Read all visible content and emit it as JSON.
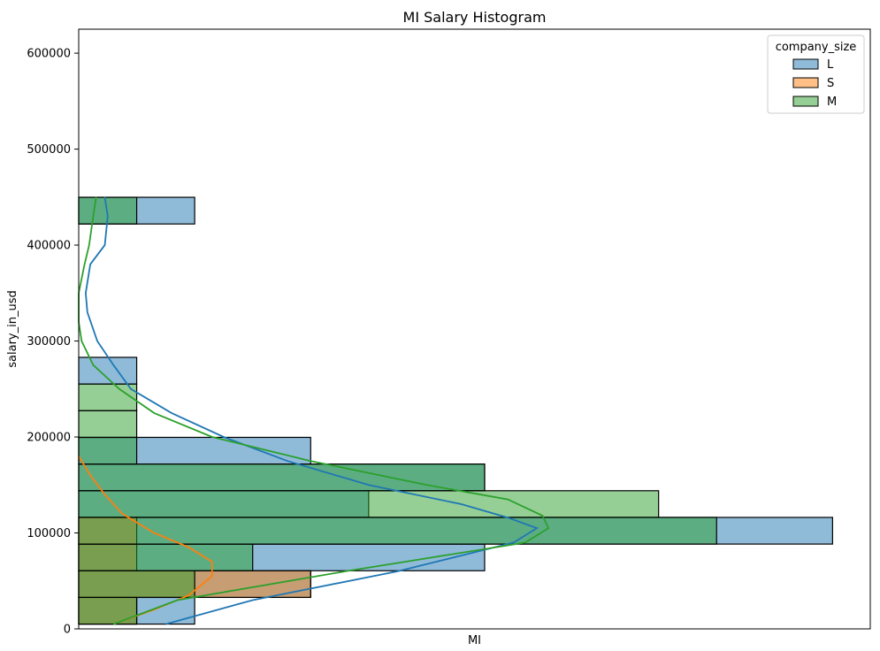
{
  "chart_data": {
    "type": "histogram",
    "orientation": "horizontal",
    "title": "MI Salary Histogram",
    "xlabel": "MI",
    "ylabel": "salary_in_usd",
    "ylim": [
      0,
      625000
    ],
    "xlim": [
      0,
      13.65
    ],
    "yticks": [
      0,
      100000,
      200000,
      300000,
      400000,
      500000,
      600000
    ],
    "ytick_labels": [
      "0",
      "100000",
      "200000",
      "300000",
      "400000",
      "500000",
      "600000"
    ],
    "grid": false,
    "legend": {
      "title": "company_size",
      "placement": "upper right",
      "entries": [
        "L",
        "S",
        "M"
      ]
    },
    "bin_edges": [
      5000,
      32800,
      60600,
      88400,
      116200,
      144000,
      171800,
      199600,
      227400,
      255200,
      283000,
      422000,
      449800
    ],
    "series": [
      {
        "name": "L",
        "color": "#1f77b4",
        "alpha": 0.5,
        "counts": [
          2,
          4,
          7,
          13,
          5,
          7,
          4,
          0,
          0,
          1,
          0,
          2
        ],
        "kde": [
          [
            5000,
            1.5
          ],
          [
            30000,
            3.0
          ],
          [
            60000,
            5.5
          ],
          [
            90000,
            7.5
          ],
          [
            105000,
            7.9
          ],
          [
            116000,
            7.4
          ],
          [
            130000,
            6.6
          ],
          [
            150000,
            5.0
          ],
          [
            175000,
            3.6
          ],
          [
            200000,
            2.5
          ],
          [
            225000,
            1.6
          ],
          [
            250000,
            0.9
          ],
          [
            275000,
            0.6
          ],
          [
            300000,
            0.32
          ],
          [
            330000,
            0.15
          ],
          [
            350000,
            0.12
          ],
          [
            380000,
            0.2
          ],
          [
            400000,
            0.45
          ],
          [
            430000,
            0.5
          ],
          [
            450000,
            0.45
          ]
        ]
      },
      {
        "name": "S",
        "color": "#ff7f0e",
        "alpha": 0.5,
        "counts": [
          1,
          4,
          1,
          1,
          0,
          0,
          0,
          0,
          0,
          0,
          0,
          0
        ],
        "kde": [
          [
            5000,
            0.6
          ],
          [
            20000,
            1.3
          ],
          [
            35000,
            1.9
          ],
          [
            55000,
            2.3
          ],
          [
            70000,
            2.3
          ],
          [
            85000,
            1.9
          ],
          [
            100000,
            1.3
          ],
          [
            120000,
            0.75
          ],
          [
            140000,
            0.45
          ],
          [
            160000,
            0.2
          ],
          [
            175000,
            0.05
          ],
          [
            180000,
            0.0
          ]
        ]
      },
      {
        "name": "M",
        "color": "#2ca02c",
        "alpha": 0.5,
        "counts": [
          1,
          2,
          3,
          11,
          10,
          7,
          1,
          1,
          1,
          0,
          0,
          1
        ],
        "kde": [
          [
            5000,
            0.6
          ],
          [
            30000,
            1.7
          ],
          [
            60000,
            4.6
          ],
          [
            90000,
            7.7
          ],
          [
            105000,
            8.1
          ],
          [
            118000,
            8.0
          ],
          [
            135000,
            7.4
          ],
          [
            150000,
            6.0
          ],
          [
            175000,
            4.0
          ],
          [
            200000,
            2.3
          ],
          [
            225000,
            1.3
          ],
          [
            250000,
            0.7
          ],
          [
            275000,
            0.25
          ],
          [
            300000,
            0.05
          ],
          [
            320000,
            0.0
          ],
          [
            350000,
            0.0
          ],
          [
            380000,
            0.1
          ],
          [
            400000,
            0.18
          ],
          [
            430000,
            0.25
          ],
          [
            450000,
            0.3
          ]
        ]
      }
    ]
  }
}
